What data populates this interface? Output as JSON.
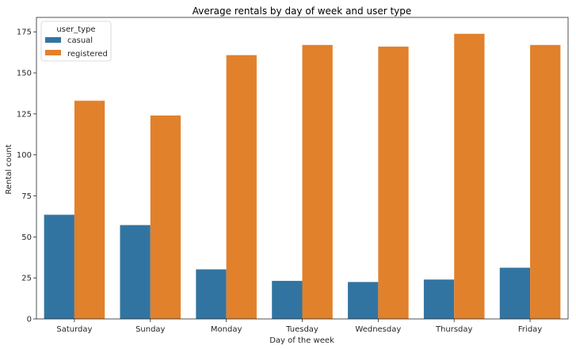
{
  "chart_data": {
    "type": "bar",
    "title": "Average rentals by day of week and user type",
    "xlabel": "Day of the week",
    "ylabel": "Rental count",
    "categories": [
      "Saturday",
      "Sunday",
      "Monday",
      "Tuesday",
      "Wednesday",
      "Thursday",
      "Friday"
    ],
    "series": [
      {
        "name": "casual",
        "color": "#3274a1",
        "values": [
          63.5,
          57.2,
          30.2,
          23.2,
          22.5,
          24.0,
          31.2
        ]
      },
      {
        "name": "registered",
        "color": "#e1812c",
        "values": [
          133.0,
          124.0,
          160.8,
          167.0,
          166.0,
          173.8,
          167.0
        ]
      }
    ],
    "ylim": [
      0,
      180
    ],
    "yticks": [
      0,
      25,
      50,
      75,
      100,
      125,
      150,
      175
    ],
    "grid": false,
    "legend": {
      "title": "user_type",
      "position": "top-left"
    }
  }
}
